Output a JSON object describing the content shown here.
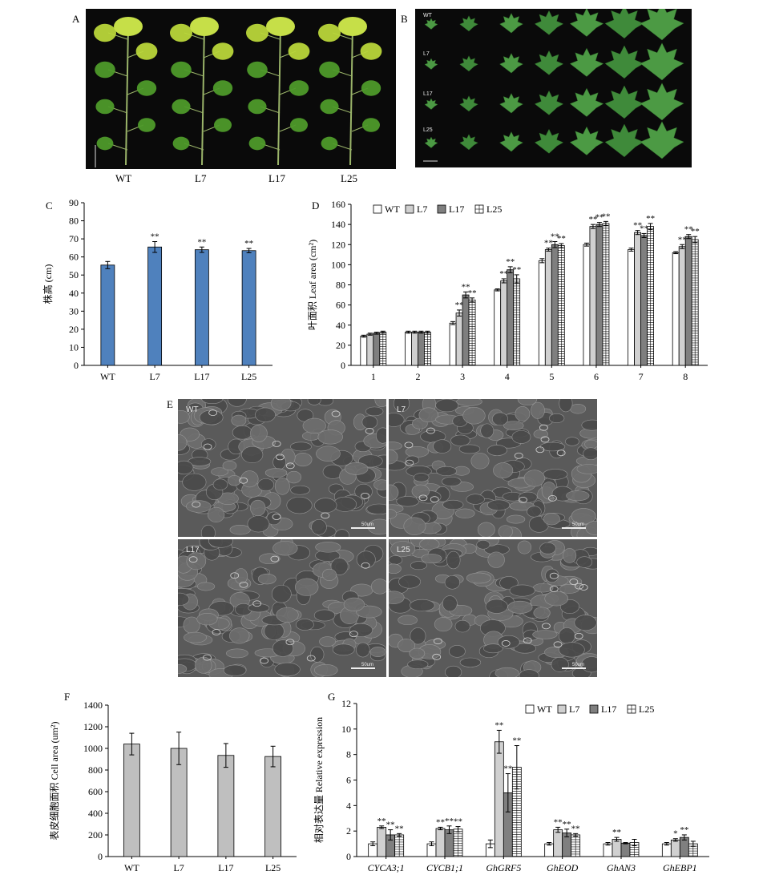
{
  "panels": {
    "A": {
      "letter": "A",
      "labels": [
        "WT",
        "L7",
        "L17",
        "L25"
      ]
    },
    "B": {
      "letter": "B",
      "rows": [
        "WT",
        "L7",
        "L17",
        "L25"
      ]
    },
    "E": {
      "letter": "E",
      "tiles": [
        {
          "label": "WT",
          "scale": "50um"
        },
        {
          "label": "L7",
          "scale": "50um"
        },
        {
          "label": "L17",
          "scale": "50um"
        },
        {
          "label": "L25",
          "scale": "50um"
        }
      ]
    }
  },
  "colors": {
    "bar_blue": "#4f81bd",
    "bar_gray": "#bfbfbf",
    "bar_light": "#d0d0d0",
    "bar_dark": "#7f7f7f",
    "leaf_green": "#4e9a2a"
  },
  "chart_data": [
    {
      "id": "C",
      "letter": "C",
      "type": "bar",
      "categories": [
        "WT",
        "L7",
        "L17",
        "L25"
      ],
      "values": [
        55.5,
        65.5,
        64,
        63.5
      ],
      "errors": [
        2,
        3,
        1.5,
        1.2
      ],
      "significance": [
        "",
        "**",
        "**",
        "**"
      ],
      "ylabel": "株高 (cm)",
      "ylim": [
        0,
        90
      ],
      "yticks": [
        0,
        10,
        20,
        30,
        40,
        50,
        60,
        70,
        80,
        90
      ]
    },
    {
      "id": "D",
      "letter": "D",
      "type": "bar",
      "categories": [
        "1",
        "2",
        "3",
        "4",
        "5",
        "6",
        "7",
        "8"
      ],
      "series": [
        {
          "name": "WT",
          "values": [
            29,
            33,
            42,
            75,
            104,
            120,
            115,
            112
          ],
          "errors": [
            1,
            1,
            1.5,
            1,
            2,
            1.5,
            1.5,
            1
          ],
          "significance": [
            "",
            "",
            "",
            "",
            "",
            "",
            "",
            ""
          ]
        },
        {
          "name": "L7",
          "values": [
            31,
            33,
            52,
            84,
            115,
            138,
            132,
            118
          ],
          "errors": [
            1,
            1,
            3,
            2,
            1.5,
            2,
            2,
            2
          ],
          "significance": [
            "",
            "",
            "**",
            "**",
            "**",
            "**",
            "**",
            "**"
          ]
        },
        {
          "name": "L17",
          "values": [
            32,
            33,
            70,
            95,
            120,
            140,
            129,
            128
          ],
          "errors": [
            1,
            1,
            3,
            3,
            3,
            2,
            2,
            2
          ],
          "significance": [
            "",
            "",
            "**",
            "**",
            "**",
            "**",
            "**",
            "**"
          ]
        },
        {
          "name": "L25",
          "values": [
            33,
            33,
            65,
            86,
            119,
            141,
            138,
            125
          ],
          "errors": [
            1,
            1,
            2,
            4,
            2,
            2,
            3,
            3
          ],
          "significance": [
            "",
            "",
            "**",
            "**",
            "**",
            "**",
            "**",
            "**"
          ]
        }
      ],
      "ylabel": "叶面积 Leaf area (cm²)",
      "ylim": [
        0,
        160
      ],
      "yticks": [
        0,
        20,
        40,
        60,
        80,
        100,
        120,
        140,
        160
      ]
    },
    {
      "id": "F",
      "letter": "F",
      "type": "bar",
      "categories": [
        "WT",
        "L7",
        "L17",
        "L25"
      ],
      "values": [
        1040,
        1000,
        935,
        925
      ],
      "errors": [
        100,
        150,
        110,
        95
      ],
      "ylabel": "表皮细胞面积 Cell area (um²)",
      "ylim": [
        0,
        1400
      ],
      "yticks": [
        0,
        200,
        400,
        600,
        800,
        1000,
        1200,
        1400
      ]
    },
    {
      "id": "G",
      "letter": "G",
      "type": "bar",
      "categories": [
        "CYCA3;1",
        "CYCB1;1",
        "GhGRF5",
        "GhEOD",
        "GhAN3",
        "GhEBP1"
      ],
      "series": [
        {
          "name": "WT",
          "values": [
            1,
            1,
            1,
            1,
            1,
            1
          ],
          "errors": [
            0.15,
            0.15,
            0.3,
            0.1,
            0.1,
            0.1
          ],
          "significance": [
            "",
            "",
            "",
            "",
            "",
            ""
          ]
        },
        {
          "name": "L7",
          "values": [
            2.3,
            2.2,
            9,
            2.1,
            1.35,
            1.3
          ],
          "errors": [
            0.1,
            0.1,
            0.9,
            0.2,
            0.15,
            0.1
          ],
          "significance": [
            "**",
            "**",
            "**",
            "**",
            "**",
            "*"
          ]
        },
        {
          "name": "L17",
          "values": [
            1.7,
            2.1,
            5,
            1.85,
            1.05,
            1.5
          ],
          "errors": [
            0.4,
            0.3,
            1.5,
            0.3,
            0.05,
            0.2
          ],
          "significance": [
            "**",
            "**",
            "**",
            "**",
            "",
            "**"
          ]
        },
        {
          "name": "L25",
          "values": [
            1.7,
            2.15,
            7,
            1.7,
            1.1,
            1
          ],
          "errors": [
            0.1,
            0.2,
            1.7,
            0.1,
            0.25,
            0.2
          ],
          "significance": [
            "**",
            "**",
            "**",
            "**",
            "",
            ""
          ]
        }
      ],
      "ylabel": "相对表达量 Relative expression",
      "ylim": [
        0,
        12
      ],
      "yticks": [
        0,
        2,
        4,
        6,
        8,
        10,
        12
      ]
    }
  ]
}
